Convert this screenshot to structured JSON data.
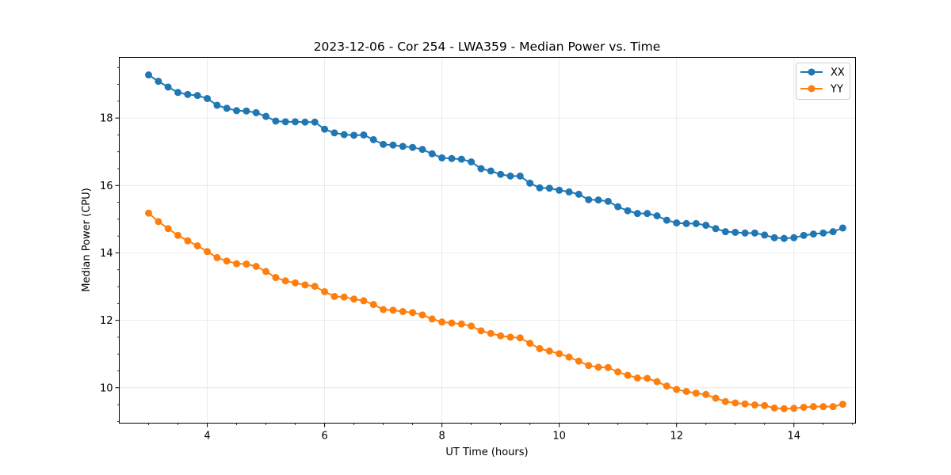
{
  "chart_data": {
    "type": "line",
    "title": "2023-12-06 - Cor 254 - LWA359 - Median Power vs. Time",
    "xlabel": "UT Time (hours)",
    "ylabel": "Median Power (CPU)",
    "xlim": [
      2.5,
      15.05
    ],
    "ylim": [
      8.95,
      19.8
    ],
    "xticks": [
      4,
      6,
      8,
      10,
      12,
      14
    ],
    "xtick_labels": [
      "4",
      "6",
      "8",
      "10",
      "12",
      "14"
    ],
    "yticks": [
      10,
      12,
      14,
      16,
      18
    ],
    "ytick_labels": [
      "10",
      "12",
      "14",
      "16",
      "18"
    ],
    "grid": true,
    "legend_position": "top-right",
    "x": [
      3.0,
      3.167,
      3.333,
      3.5,
      3.667,
      3.833,
      4.0,
      4.167,
      4.333,
      4.5,
      4.667,
      4.833,
      5.0,
      5.167,
      5.333,
      5.5,
      5.667,
      5.833,
      6.0,
      6.167,
      6.333,
      6.5,
      6.667,
      6.833,
      7.0,
      7.167,
      7.333,
      7.5,
      7.667,
      7.833,
      8.0,
      8.167,
      8.333,
      8.5,
      8.667,
      8.833,
      9.0,
      9.167,
      9.333,
      9.5,
      9.667,
      9.833,
      10.0,
      10.167,
      10.333,
      10.5,
      10.667,
      10.833,
      11.0,
      11.167,
      11.333,
      11.5,
      11.667,
      11.833,
      12.0,
      12.167,
      12.333,
      12.5,
      12.667,
      12.833,
      13.0,
      13.167,
      13.333,
      13.5,
      13.667,
      13.833,
      14.0,
      14.167,
      14.333,
      14.5,
      14.667,
      14.833
    ],
    "series": [
      {
        "name": "XX",
        "color": "#1f77b4",
        "values": [
          19.28,
          19.09,
          18.92,
          18.76,
          18.7,
          18.67,
          18.58,
          18.38,
          18.29,
          18.22,
          18.21,
          18.16,
          18.05,
          17.91,
          17.89,
          17.89,
          17.88,
          17.88,
          17.67,
          17.56,
          17.51,
          17.49,
          17.5,
          17.36,
          17.22,
          17.2,
          17.16,
          17.13,
          17.07,
          16.94,
          16.82,
          16.8,
          16.78,
          16.7,
          16.5,
          16.43,
          16.33,
          16.28,
          16.28,
          16.07,
          15.93,
          15.92,
          15.86,
          15.81,
          15.74,
          15.58,
          15.57,
          15.53,
          15.37,
          15.25,
          15.17,
          15.17,
          15.1,
          14.97,
          14.89,
          14.87,
          14.87,
          14.82,
          14.72,
          14.63,
          14.61,
          14.59,
          14.59,
          14.53,
          14.45,
          14.43,
          14.45,
          14.52,
          14.56,
          14.59,
          14.63,
          14.74
        ]
      },
      {
        "name": "YY",
        "color": "#ff7f0e",
        "values": [
          15.18,
          14.93,
          14.72,
          14.52,
          14.36,
          14.21,
          14.04,
          13.86,
          13.76,
          13.68,
          13.67,
          13.6,
          13.45,
          13.27,
          13.17,
          13.11,
          13.05,
          13.01,
          12.85,
          12.71,
          12.69,
          12.63,
          12.58,
          12.47,
          12.32,
          12.3,
          12.26,
          12.23,
          12.16,
          12.04,
          11.95,
          11.92,
          11.89,
          11.83,
          11.69,
          11.61,
          11.54,
          11.5,
          11.48,
          11.32,
          11.16,
          11.09,
          11.01,
          10.91,
          10.79,
          10.66,
          10.61,
          10.6,
          10.47,
          10.37,
          10.29,
          10.28,
          10.18,
          10.05,
          9.95,
          9.89,
          9.84,
          9.8,
          9.69,
          9.59,
          9.55,
          9.52,
          9.49,
          9.47,
          9.4,
          9.38,
          9.39,
          9.42,
          9.44,
          9.44,
          9.44,
          9.51
        ]
      }
    ]
  }
}
